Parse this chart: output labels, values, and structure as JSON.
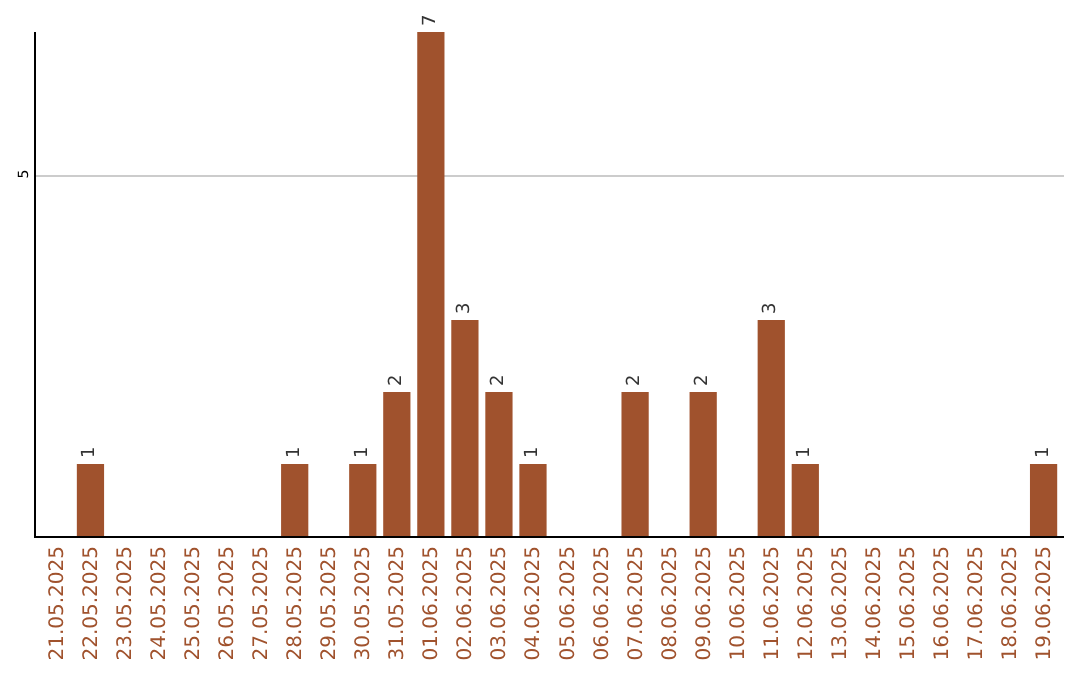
{
  "chart_data": {
    "type": "bar",
    "categories": [
      "21.05.2025",
      "22.05.2025",
      "23.05.2025",
      "24.05.2025",
      "25.05.2025",
      "26.05.2025",
      "27.05.2025",
      "28.05.2025",
      "29.05.2025",
      "30.05.2025",
      "31.05.2025",
      "01.06.2025",
      "02.06.2025",
      "03.06.2025",
      "04.06.2025",
      "05.06.2025",
      "06.06.2025",
      "07.06.2025",
      "08.06.2025",
      "09.06.2025",
      "10.06.2025",
      "11.06.2025",
      "12.06.2025",
      "13.06.2025",
      "14.06.2025",
      "15.06.2025",
      "16.06.2025",
      "17.06.2025",
      "18.06.2025",
      "19.06.2025"
    ],
    "values": [
      0,
      1,
      0,
      0,
      0,
      0,
      0,
      1,
      0,
      1,
      2,
      7,
      3,
      2,
      1,
      0,
      0,
      2,
      0,
      2,
      0,
      3,
      1,
      0,
      0,
      0,
      0,
      0,
      0,
      1
    ],
    "value_labels": [
      null,
      "1",
      null,
      null,
      null,
      null,
      null,
      "1",
      null,
      "1",
      "2",
      "7",
      "3",
      "2",
      "1",
      null,
      null,
      "2",
      null,
      "2",
      null,
      "3",
      "1",
      null,
      null,
      null,
      null,
      null,
      null,
      "1"
    ],
    "color": "#a0522d",
    "ylim": [
      0,
      7
    ],
    "yticks": [
      5
    ],
    "grid": "y",
    "legend": false
  }
}
